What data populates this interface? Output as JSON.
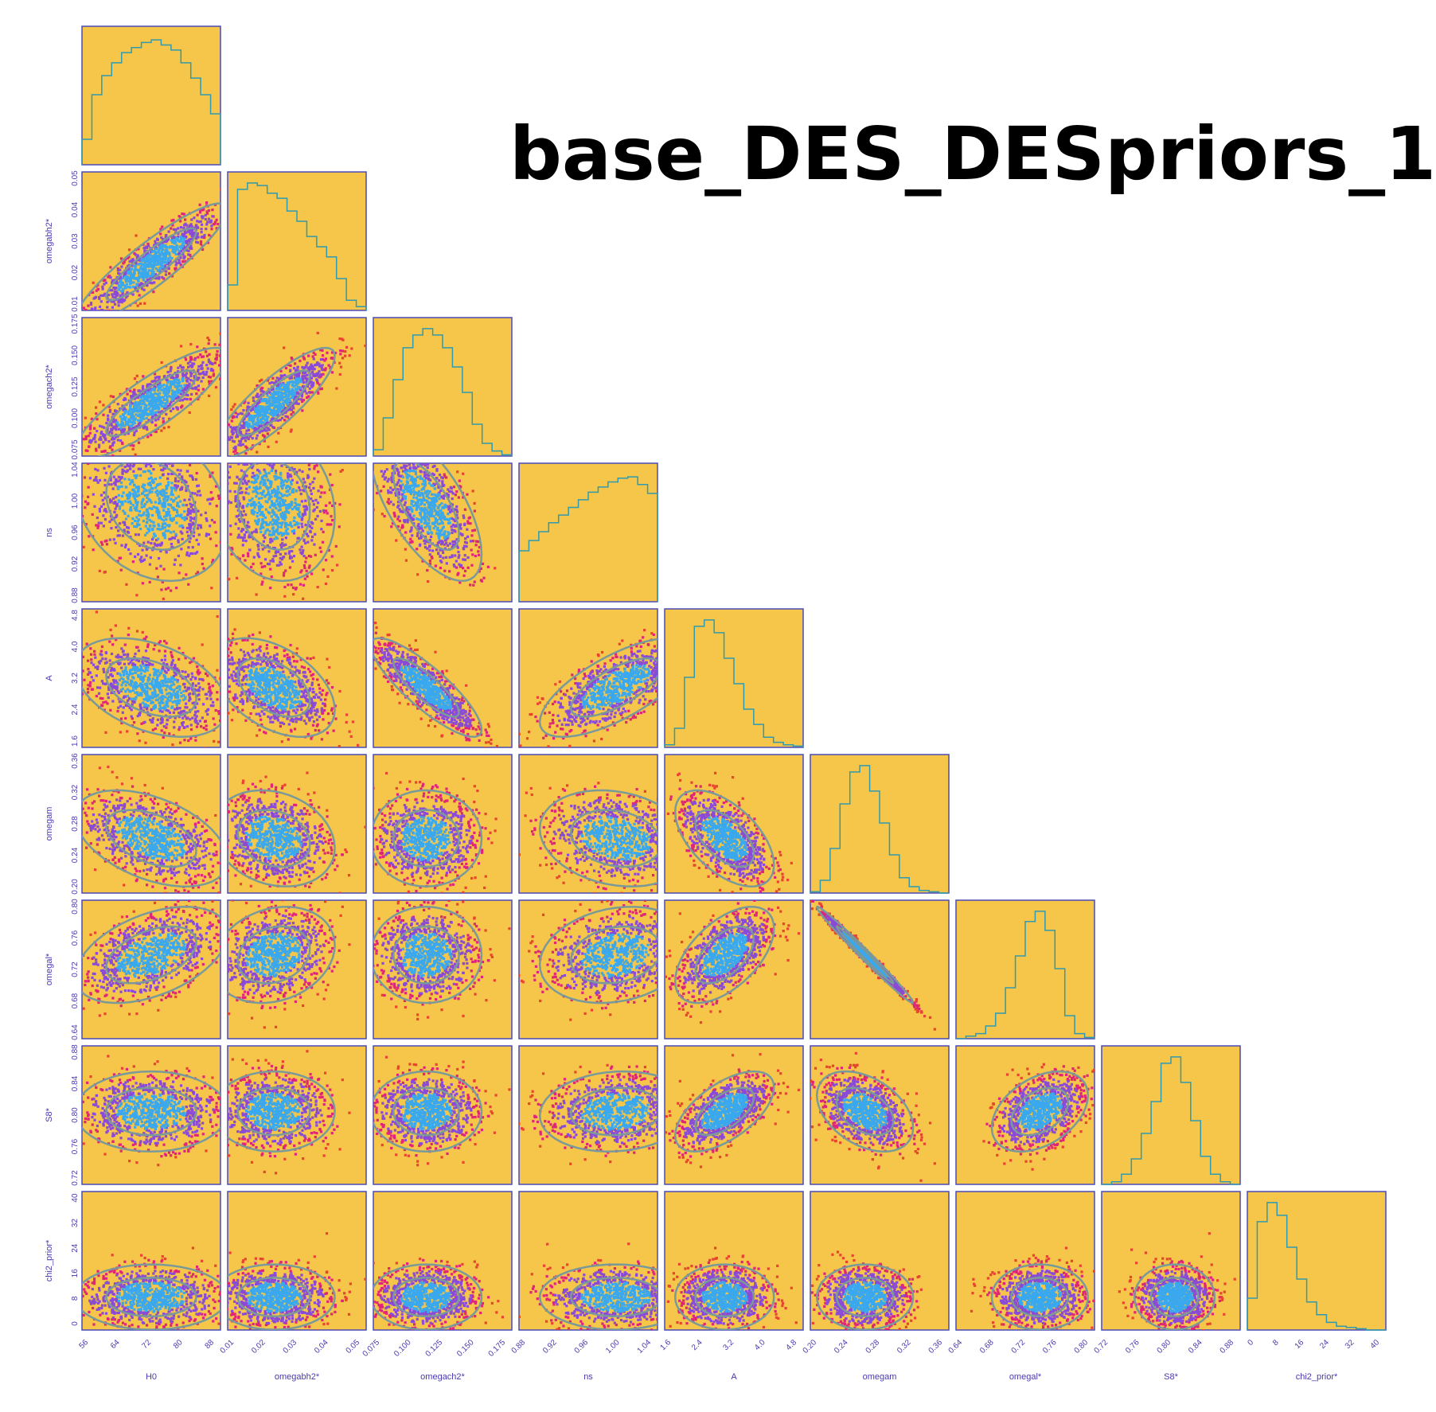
{
  "title": "base_DES_DESpriors_1",
  "colors": {
    "panel_bg": "#f5c64a",
    "panel_border": "#4a4ab8",
    "sigma3": "#e8442f",
    "sigma2": "#e0247a",
    "sigma1": "#8a4ad8",
    "core": "#3aa8ee",
    "contour": "#7a9a9a",
    "hist_line": "#2f9ab0",
    "tick_text": "#4a3ab0"
  },
  "chart_data": {
    "type": "corner",
    "parameters": [
      {
        "name": "H0",
        "axis_label": "H0",
        "ticks": [
          "56",
          "64",
          "72",
          "80",
          "88"
        ],
        "range": [
          56,
          88
        ],
        "mean": 72,
        "sd": 8
      },
      {
        "name": "omegabh2",
        "axis_label": "omegabh2*",
        "ticks": [
          "0.01",
          "0.02",
          "0.03",
          "0.04",
          "0.05"
        ],
        "range": [
          0.01,
          0.055
        ],
        "mean": 0.025,
        "sd": 0.009
      },
      {
        "name": "omegach2",
        "axis_label": "omegach2*",
        "ticks": [
          "0.075",
          "0.100",
          "0.125",
          "0.150",
          "0.175"
        ],
        "range": [
          0.065,
          0.175
        ],
        "mean": 0.107,
        "sd": 0.02
      },
      {
        "name": "ns",
        "axis_label": "ns",
        "ticks": [
          "0.88",
          "0.92",
          "0.96",
          "1.00",
          "1.04"
        ],
        "range": [
          0.87,
          1.07
        ],
        "mean": 1.01,
        "sd": 0.05
      },
      {
        "name": "A",
        "axis_label": "A",
        "ticks": [
          "1.6",
          "2.4",
          "3.2",
          "4.0",
          "4.8"
        ],
        "range": [
          1.3,
          5.0
        ],
        "mean": 2.9,
        "sd": 0.6
      },
      {
        "name": "omegam",
        "axis_label": "omegam",
        "ticks": [
          "0.20",
          "0.24",
          "0.28",
          "0.32",
          "0.36"
        ],
        "range": [
          0.18,
          0.37
        ],
        "mean": 0.255,
        "sd": 0.03
      },
      {
        "name": "omegal",
        "axis_label": "omegal*",
        "ticks": [
          "0.64",
          "0.68",
          "0.72",
          "0.76",
          "0.80"
        ],
        "range": [
          0.63,
          0.82
        ],
        "mean": 0.745,
        "sd": 0.03
      },
      {
        "name": "S8",
        "axis_label": "S8*",
        "ticks": [
          "0.72",
          "0.76",
          "0.80",
          "0.84",
          "0.88"
        ],
        "range": [
          0.7,
          0.89
        ],
        "mean": 0.8,
        "sd": 0.025
      },
      {
        "name": "chi2_prior",
        "axis_label": "chi2_prior*",
        "ticks": [
          "0",
          "8",
          "16",
          "24",
          "32",
          "40"
        ],
        "range": [
          -2,
          40
        ],
        "mean": 8,
        "sd": 4.5
      }
    ],
    "y_tick_rows": {
      "omegabh2": [
        "0.01",
        "0.02",
        "0.03",
        "0.04",
        "0.05"
      ],
      "omegach2": [
        "0.075",
        "0.100",
        "0.125",
        "0.150",
        "0.175"
      ],
      "ns": [
        "0.88",
        "0.92",
        "0.96",
        "1.00",
        "1.04"
      ],
      "A": [
        "1.6",
        "2.4",
        "3.2",
        "4.0",
        "4.8"
      ],
      "omegam": [
        "0.20",
        "0.24",
        "0.28",
        "0.32",
        "0.36"
      ],
      "omegal": [
        "0.64",
        "0.68",
        "0.72",
        "0.76",
        "0.80"
      ],
      "S8": [
        "0.72",
        "0.76",
        "0.80",
        "0.84",
        "0.88"
      ],
      "chi2_prior": [
        "0",
        "8",
        "16",
        "24",
        "32",
        "40"
      ]
    },
    "correlations": [
      [
        1.0,
        0.9,
        0.85,
        -0.25,
        -0.4,
        -0.45,
        0.45,
        0.0,
        0.0
      ],
      [
        0.9,
        1.0,
        0.85,
        -0.15,
        -0.45,
        -0.2,
        0.2,
        0.0,
        0.0
      ],
      [
        0.85,
        0.85,
        1.0,
        -0.65,
        -0.85,
        0.0,
        0.0,
        0.0,
        0.0
      ],
      [
        -0.25,
        -0.15,
        -0.65,
        1.0,
        0.7,
        -0.2,
        0.2,
        0.1,
        0.0
      ],
      [
        -0.4,
        -0.45,
        -0.85,
        0.7,
        1.0,
        -0.55,
        0.55,
        0.6,
        0.0
      ],
      [
        -0.45,
        -0.2,
        0.0,
        -0.2,
        -0.55,
        1.0,
        -0.99,
        -0.4,
        0.0
      ],
      [
        0.45,
        0.2,
        0.0,
        0.2,
        0.55,
        -0.99,
        1.0,
        0.4,
        0.0
      ],
      [
        0.0,
        0.0,
        0.0,
        0.1,
        0.6,
        -0.4,
        0.4,
        1.0,
        0.0
      ],
      [
        0.0,
        0.0,
        0.0,
        0.0,
        0.0,
        0.0,
        0.0,
        0.0,
        1.0
      ]
    ],
    "histograms": [
      [
        0.2,
        0.55,
        0.7,
        0.8,
        0.88,
        0.92,
        0.96,
        0.98,
        0.94,
        0.9,
        0.8,
        0.68,
        0.55,
        0.4
      ],
      [
        0.2,
        0.95,
        1.0,
        0.98,
        0.92,
        0.88,
        0.78,
        0.7,
        0.58,
        0.5,
        0.42,
        0.25,
        0.08,
        0.03
      ],
      [
        0.05,
        0.3,
        0.6,
        0.85,
        0.95,
        1.0,
        0.95,
        0.85,
        0.7,
        0.5,
        0.25,
        0.1,
        0.04,
        0.01
      ],
      [
        0.4,
        0.48,
        0.55,
        0.62,
        0.68,
        0.74,
        0.8,
        0.86,
        0.9,
        0.94,
        0.97,
        0.98,
        0.92,
        0.85
      ],
      [
        0.02,
        0.15,
        0.55,
        0.95,
        1.0,
        0.9,
        0.7,
        0.5,
        0.3,
        0.18,
        0.08,
        0.04,
        0.02,
        0.01
      ],
      [
        0.01,
        0.1,
        0.35,
        0.7,
        0.95,
        1.0,
        0.8,
        0.55,
        0.3,
        0.12,
        0.05,
        0.02,
        0.01,
        0.0
      ],
      [
        0.0,
        0.02,
        0.04,
        0.1,
        0.2,
        0.4,
        0.65,
        0.92,
        1.0,
        0.85,
        0.55,
        0.18,
        0.04,
        0.01
      ],
      [
        0.0,
        0.02,
        0.08,
        0.2,
        0.4,
        0.65,
        0.95,
        1.0,
        0.8,
        0.5,
        0.22,
        0.08,
        0.02,
        0.0
      ],
      [
        0.25,
        0.85,
        1.0,
        0.9,
        0.65,
        0.4,
        0.22,
        0.12,
        0.06,
        0.03,
        0.02,
        0.01,
        0.0,
        0.0
      ]
    ]
  }
}
